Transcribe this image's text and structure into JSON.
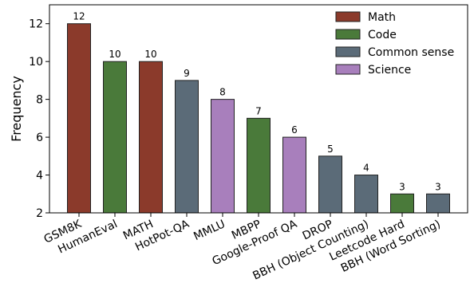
{
  "chart_data": {
    "type": "bar",
    "title": "",
    "xlabel": "",
    "ylabel": "Frequency",
    "ylim": [
      2,
      13
    ],
    "yticks": [
      2,
      4,
      6,
      8,
      10,
      12
    ],
    "grid": false,
    "legend_position": "top-right",
    "legend": [
      {
        "name": "Math",
        "color": "#8b3a2b"
      },
      {
        "name": "Code",
        "color": "#4a7a3a"
      },
      {
        "name": "Common sense",
        "color": "#5b6b78"
      },
      {
        "name": "Science",
        "color": "#a87fbc"
      }
    ],
    "categories": [
      "GSM8K",
      "HumanEval",
      "MATH",
      "HotPot-QA",
      "MMLU",
      "MBPP",
      "Google-Proof QA",
      "DROP",
      "BBH (Object Counting)",
      "Leetcode Hard",
      "BBH (Word Sorting)"
    ],
    "values": [
      12,
      10,
      10,
      9,
      8,
      7,
      6,
      5,
      4,
      3,
      3
    ],
    "bar_groups": [
      "Math",
      "Code",
      "Math",
      "Common sense",
      "Science",
      "Code",
      "Science",
      "Common sense",
      "Common sense",
      "Code",
      "Common sense"
    ]
  }
}
